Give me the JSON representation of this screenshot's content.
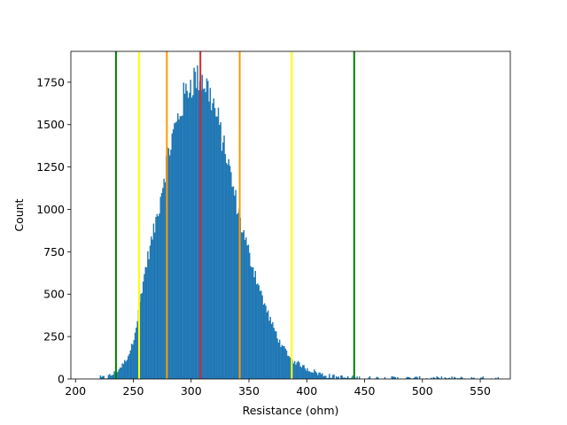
{
  "chart_data": {
    "type": "bar",
    "title": "",
    "xlabel": "Resistance (ohm)",
    "ylabel": "Count",
    "xlim": [
      196,
      576
    ],
    "ylim": [
      0,
      1932
    ],
    "x_ticks": [
      200,
      250,
      300,
      350,
      400,
      450,
      500,
      550
    ],
    "y_ticks": [
      0,
      250,
      500,
      750,
      1000,
      1250,
      1500,
      1750
    ],
    "grid": false,
    "legend": "none",
    "bar_color": "#1f77b4",
    "histogram": {
      "bin_width": 1,
      "profile": [
        [
          220,
          5
        ],
        [
          226,
          8
        ],
        [
          230,
          20
        ],
        [
          234,
          35
        ],
        [
          238,
          60
        ],
        [
          242,
          95
        ],
        [
          246,
          140
        ],
        [
          250,
          230
        ],
        [
          254,
          370
        ],
        [
          258,
          560
        ],
        [
          262,
          700
        ],
        [
          266,
          820
        ],
        [
          270,
          940
        ],
        [
          274,
          1090
        ],
        [
          278,
          1260
        ],
        [
          282,
          1380
        ],
        [
          286,
          1480
        ],
        [
          290,
          1570
        ],
        [
          294,
          1660
        ],
        [
          298,
          1730
        ],
        [
          302,
          1770
        ],
        [
          306,
          1780
        ],
        [
          310,
          1760
        ],
        [
          314,
          1720
        ],
        [
          318,
          1650
        ],
        [
          322,
          1550
        ],
        [
          326,
          1440
        ],
        [
          330,
          1330
        ],
        [
          334,
          1200
        ],
        [
          338,
          1070
        ],
        [
          342,
          950
        ],
        [
          346,
          840
        ],
        [
          350,
          740
        ],
        [
          354,
          650
        ],
        [
          358,
          560
        ],
        [
          362,
          470
        ],
        [
          366,
          390
        ],
        [
          370,
          320
        ],
        [
          374,
          260
        ],
        [
          378,
          200
        ],
        [
          382,
          160
        ],
        [
          386,
          120
        ],
        [
          390,
          100
        ],
        [
          394,
          85
        ],
        [
          398,
          70
        ],
        [
          402,
          55
        ],
        [
          406,
          45
        ],
        [
          410,
          35
        ],
        [
          414,
          25
        ],
        [
          420,
          16
        ],
        [
          428,
          10
        ],
        [
          436,
          6
        ],
        [
          446,
          4
        ],
        [
          460,
          3
        ],
        [
          480,
          2
        ],
        [
          500,
          1
        ],
        [
          520,
          1
        ],
        [
          540,
          0.6
        ],
        [
          566,
          0.3
        ]
      ]
    },
    "vertical_lines": [
      {
        "x": 308,
        "color": "#d62728"
      },
      {
        "x": 279,
        "color": "#ff9900"
      },
      {
        "x": 342,
        "color": "#ff9900"
      },
      {
        "x": 255,
        "color": "#ffff00"
      },
      {
        "x": 387,
        "color": "#ffff00"
      },
      {
        "x": 235,
        "color": "#008000"
      },
      {
        "x": 441,
        "color": "#008000"
      }
    ]
  }
}
